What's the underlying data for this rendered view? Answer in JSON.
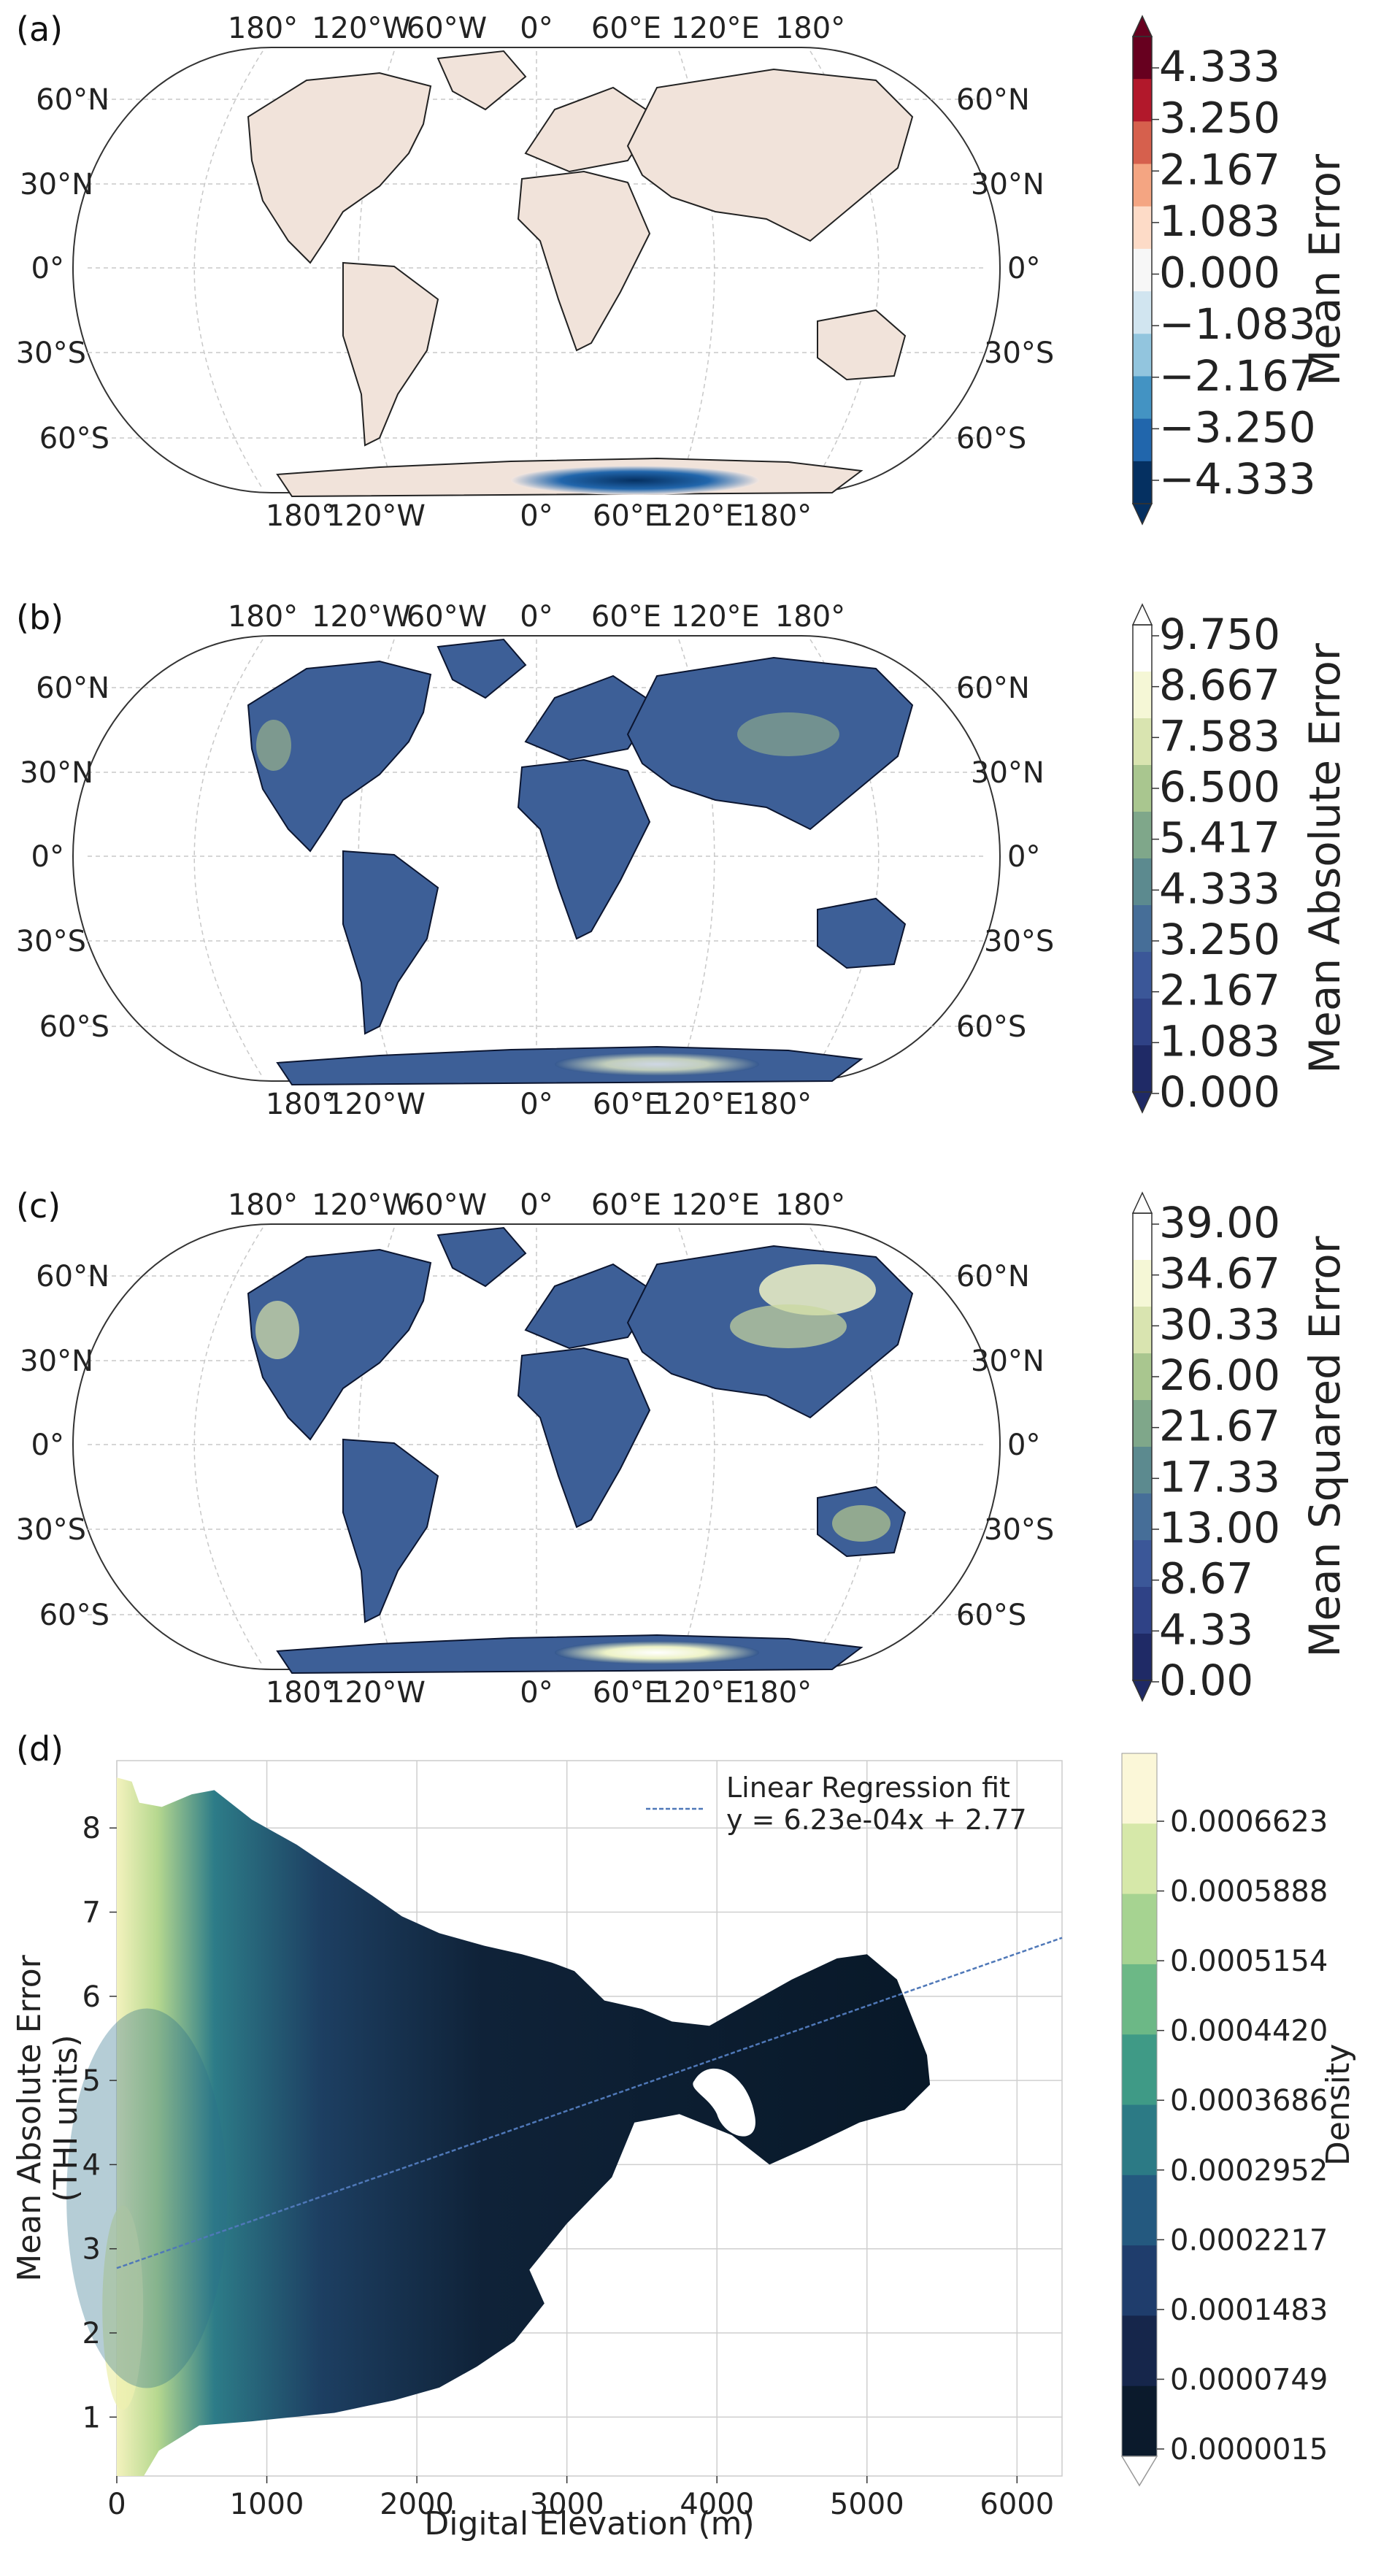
{
  "panels": [
    {
      "letter": "(a)",
      "colorbar": {
        "title": "Mean Error",
        "ticks": [
          "4.333",
          "3.250",
          "2.167",
          "1.083",
          "0.000",
          "−1.083",
          "−2.167",
          "−3.250",
          "−4.333"
        ],
        "colors": [
          "#67001f",
          "#b2182b",
          "#d6604d",
          "#f4a582",
          "#fddbc7",
          "#f7f7f7",
          "#d1e5f0",
          "#92c5de",
          "#4393c3",
          "#2166ac",
          "#053061"
        ]
      },
      "map_style": "diverging"
    },
    {
      "letter": "(b)",
      "colorbar": {
        "title": "Mean Absolute Error",
        "ticks": [
          "9.750",
          "8.667",
          "7.583",
          "6.500",
          "5.417",
          "4.333",
          "3.250",
          "2.167",
          "1.083",
          "0.000"
        ],
        "colors": [
          "#ffffff",
          "#f5f7d6",
          "#d9e4b0",
          "#a9c68f",
          "#7fa78a",
          "#5c8a8f",
          "#466e98",
          "#3b5798",
          "#2f4286",
          "#1f2a66"
        ]
      },
      "map_style": "sequential"
    },
    {
      "letter": "(c)",
      "colorbar": {
        "title": "Mean Squared Error",
        "ticks": [
          "39.00",
          "34.67",
          "30.33",
          "26.00",
          "21.67",
          "17.33",
          "13.00",
          "8.67",
          "4.33",
          "0.00"
        ],
        "colors": [
          "#ffffff",
          "#f5f7d6",
          "#d9e4b0",
          "#a9c68f",
          "#7fa78a",
          "#5c8a8f",
          "#466e98",
          "#3b5798",
          "#2f4286",
          "#1f2a66"
        ]
      },
      "map_style": "sequential"
    }
  ],
  "map_labels": {
    "top_lon": [
      "180°",
      "120°W",
      "60°W",
      "0°",
      "60°E",
      "120°E",
      "180°"
    ],
    "bottom_lon": [
      "180°",
      "120°W",
      "0°",
      "60°E",
      "120°E",
      "180°"
    ],
    "lat": [
      "60°N",
      "30°N",
      "0°",
      "30°S",
      "60°S"
    ]
  },
  "panel_d": {
    "letter": "(d)",
    "legend": {
      "label": "Linear Regression fit",
      "equation": "y = 6.23e-04x + 2.77"
    },
    "colorbar": {
      "title": "Density",
      "ticks": [
        "0.0006623",
        "0.0005888",
        "0.0005154",
        "0.0004420",
        "0.0003686",
        "0.0002952",
        "0.0002217",
        "0.0001483",
        "0.0000749",
        "0.0000015"
      ],
      "colors": [
        "#fbf7d8",
        "#d6e8a9",
        "#a6d391",
        "#6cb886",
        "#3f9a86",
        "#2c7a85",
        "#24597f",
        "#1f3d6c",
        "#16264b",
        "#0b1a2c"
      ]
    }
  },
  "chart_data": {
    "type": "heatmap",
    "xlabel": "Digital Elevation (m)",
    "ylabel_lines": [
      "Mean Absolute Error",
      "(THI units)"
    ],
    "xlim": [
      0,
      6300
    ],
    "ylim": [
      0.3,
      8.8
    ],
    "xticks": [
      0,
      1000,
      2000,
      3000,
      4000,
      5000,
      6000
    ],
    "yticks": [
      1,
      2,
      3,
      4,
      5,
      6,
      7,
      8
    ],
    "grid": true,
    "legend_position": "top-right",
    "regression": {
      "slope": 0.000623,
      "intercept": 2.77
    },
    "density_envelope": [
      [
        0,
        8.6
      ],
      [
        100,
        8.55
      ],
      [
        150,
        8.3
      ],
      [
        300,
        8.25
      ],
      [
        500,
        8.4
      ],
      [
        650,
        8.45
      ],
      [
        900,
        8.1
      ],
      [
        1200,
        7.8
      ],
      [
        1450,
        7.5
      ],
      [
        1700,
        7.2
      ],
      [
        1900,
        6.95
      ],
      [
        2150,
        6.75
      ],
      [
        2450,
        6.6
      ],
      [
        2700,
        6.5
      ],
      [
        2900,
        6.4
      ],
      [
        3050,
        6.3
      ],
      [
        3250,
        5.95
      ],
      [
        3500,
        5.85
      ],
      [
        3700,
        5.7
      ],
      [
        3950,
        5.65
      ],
      [
        4200,
        5.9
      ],
      [
        4500,
        6.2
      ],
      [
        4800,
        6.45
      ],
      [
        5000,
        6.5
      ],
      [
        5200,
        6.2
      ],
      [
        5400,
        5.3
      ],
      [
        5420,
        4.95
      ],
      [
        5250,
        4.65
      ],
      [
        4950,
        4.5
      ],
      [
        4600,
        4.2
      ],
      [
        4350,
        4.0
      ],
      [
        4100,
        4.35
      ],
      [
        3750,
        4.6
      ],
      [
        3450,
        4.5
      ],
      [
        3300,
        3.85
      ],
      [
        3000,
        3.3
      ],
      [
        2750,
        2.75
      ],
      [
        2850,
        2.35
      ],
      [
        2650,
        1.9
      ],
      [
        2400,
        1.6
      ],
      [
        2150,
        1.35
      ],
      [
        1850,
        1.2
      ],
      [
        1450,
        1.05
      ],
      [
        900,
        0.95
      ],
      [
        550,
        0.9
      ],
      [
        280,
        0.6
      ],
      [
        180,
        0.3
      ],
      [
        0,
        0.3
      ]
    ]
  }
}
